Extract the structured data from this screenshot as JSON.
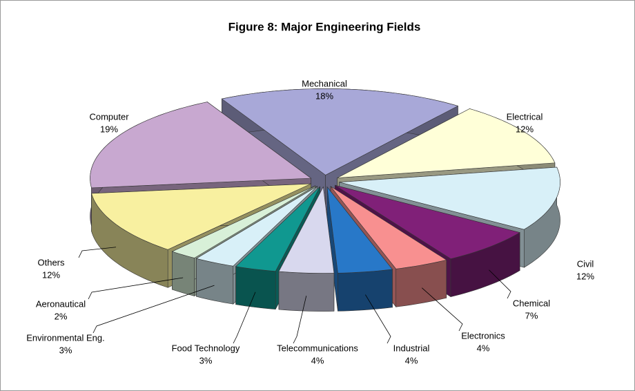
{
  "chart_data": {
    "type": "pie",
    "title": "Figure 8: Major Engineering Fields",
    "categories": [
      "Mechanical",
      "Electrical",
      "Civil",
      "Chemical",
      "Electronics",
      "Industrial",
      "Telecommunications",
      "Food Technology",
      "Environmental Eng.",
      "Aeronautical",
      "Others",
      "Computer"
    ],
    "values": [
      18,
      12,
      12,
      7,
      4,
      4,
      4,
      3,
      3,
      2,
      12,
      19
    ],
    "value_labels": [
      "18%",
      "12%",
      "12%",
      "7%",
      "4%",
      "4%",
      "4%",
      "3%",
      "3%",
      "2%",
      "12%",
      "19%"
    ],
    "colors": [
      "#a8a8d8",
      "#ffffd8",
      "#d8f0f8",
      "#802078",
      "#f89090",
      "#2878c8",
      "#d8d8ee",
      "#109890",
      "#d8f0f8",
      "#d8f0d8",
      "#f8f0a0",
      "#c8a8d0"
    ]
  }
}
